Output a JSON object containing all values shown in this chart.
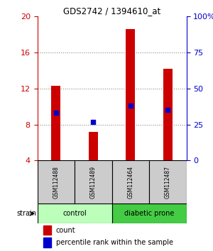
{
  "title": "GDS2742 / 1394610_at",
  "samples": [
    "GSM112488",
    "GSM112489",
    "GSM112464",
    "GSM112487"
  ],
  "counts": [
    12.3,
    7.2,
    18.6,
    14.2
  ],
  "percentile_values": [
    33,
    27,
    38,
    35
  ],
  "ylim_left": [
    4,
    20
  ],
  "ylim_right": [
    0,
    100
  ],
  "yticks_left": [
    4,
    8,
    12,
    16,
    20
  ],
  "yticks_right": [
    0,
    25,
    50,
    75,
    100
  ],
  "ytick_labels_right": [
    "0",
    "25",
    "50",
    "75",
    "100%"
  ],
  "bar_color": "#cc0000",
  "dot_color": "#0000cc",
  "bar_bottom": 4,
  "groups": [
    {
      "label": "control",
      "samples": [
        0,
        1
      ],
      "color": "#bbffbb"
    },
    {
      "label": "diabetic prone",
      "samples": [
        2,
        3
      ],
      "color": "#44cc44"
    }
  ],
  "strain_label": "strain",
  "legend_count": "count",
  "legend_percentile": "percentile rank within the sample",
  "grid_color": "#888888",
  "title_color": "#000000",
  "left_tick_color": "#cc0000",
  "right_tick_color": "#0000cc",
  "sample_box_color": "#cccccc",
  "bar_width": 0.25,
  "gridline_ticks": [
    8,
    12,
    16
  ]
}
